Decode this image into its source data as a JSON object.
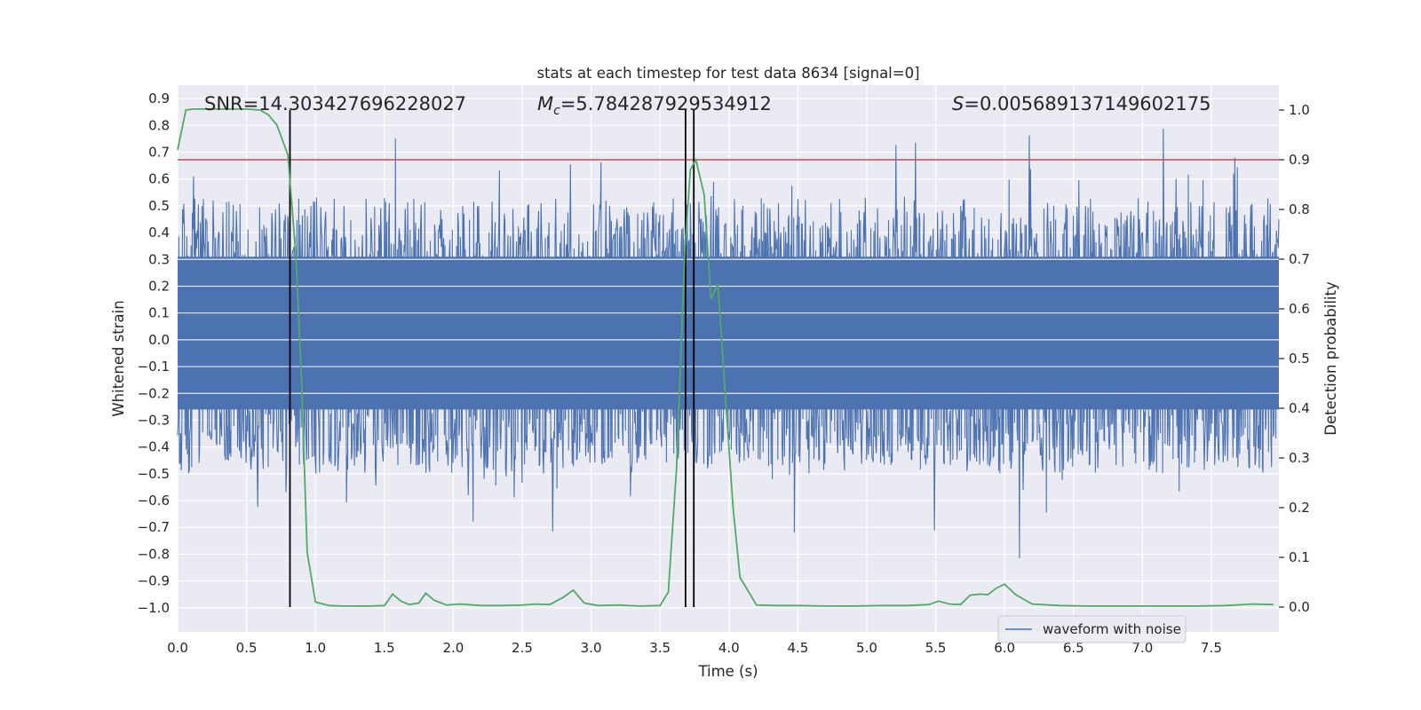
{
  "chart_data": {
    "type": "line",
    "title": "stats at each timestep for test data 8634 [signal=0]",
    "xlabel": "Time (s)",
    "ylabel": "Whitened strain",
    "y2label": "Detection probability",
    "xlim": [
      0.0,
      7.99
    ],
    "ylim": [
      -1.09,
      0.95
    ],
    "y2lim": [
      -0.05,
      1.05
    ],
    "xticks": [
      "0.0",
      "0.5",
      "1.0",
      "1.5",
      "2.0",
      "2.5",
      "3.0",
      "3.5",
      "4.0",
      "4.5",
      "5.0",
      "5.5",
      "6.0",
      "6.5",
      "7.0",
      "7.5"
    ],
    "xtick_values": [
      0.0,
      0.5,
      1.0,
      1.5,
      2.0,
      2.5,
      3.0,
      3.5,
      4.0,
      4.5,
      5.0,
      5.5,
      6.0,
      6.5,
      7.0,
      7.5
    ],
    "yticks": [
      "0.9",
      "0.8",
      "0.7",
      "0.6",
      "0.5",
      "0.4",
      "0.3",
      "0.2",
      "0.1",
      "0.0",
      "−0.1",
      "−0.2",
      "−0.3",
      "−0.4",
      "−0.5",
      "−0.6",
      "−0.7",
      "−0.8",
      "−0.9",
      "−1.0"
    ],
    "ytick_values": [
      0.9,
      0.8,
      0.7,
      0.6,
      0.5,
      0.4,
      0.3,
      0.2,
      0.1,
      0.0,
      -0.1,
      -0.2,
      -0.3,
      -0.4,
      -0.5,
      -0.6,
      -0.7,
      -0.8,
      -0.9,
      -1.0
    ],
    "y2ticks": [
      "1.0",
      "0.9",
      "0.8",
      "0.7",
      "0.6",
      "0.5",
      "0.4",
      "0.3",
      "0.2",
      "0.1",
      "0.0"
    ],
    "y2tick_values": [
      1.0,
      0.9,
      0.8,
      0.7,
      0.6,
      0.5,
      0.4,
      0.3,
      0.2,
      0.1,
      0.0
    ],
    "grid": true,
    "legend": {
      "position": "bottom-right",
      "entries": [
        {
          "label": "waveform with noise",
          "color": "#4c72b0"
        }
      ]
    },
    "annotations": {
      "snr": "SNR=14.303427696228027",
      "mc_symbol": "M",
      "mc_sub": "c",
      "mc_value": "=5.784287929534912",
      "s_symbol": "S",
      "s_value": "=0.005689137149602175"
    },
    "series": [
      {
        "name": "waveform with noise",
        "color": "#4c72b0",
        "axis": "left",
        "kind": "noise",
        "core_range": [
          -0.26,
          0.31
        ],
        "spike_max": 0.86,
        "spike_min": -1.0
      },
      {
        "axis": "right",
        "color": "#55a868",
        "x": [
          0.0,
          0.06,
          0.12,
          0.2,
          0.3,
          0.4,
          0.5,
          0.6,
          0.66,
          0.72,
          0.8,
          0.86,
          0.9,
          0.94,
          1.0,
          1.1,
          1.2,
          1.3,
          1.4,
          1.5,
          1.56,
          1.62,
          1.68,
          1.75,
          1.8,
          1.86,
          1.95,
          2.05,
          2.2,
          2.35,
          2.5,
          2.6,
          2.7,
          2.8,
          2.87,
          2.95,
          3.05,
          3.2,
          3.35,
          3.5,
          3.56,
          3.62,
          3.68,
          3.72,
          3.76,
          3.82,
          3.87,
          3.92,
          3.97,
          4.03,
          4.08,
          4.2,
          4.35,
          4.5,
          4.7,
          4.9,
          5.1,
          5.3,
          5.45,
          5.52,
          5.6,
          5.68,
          5.75,
          5.82,
          5.88,
          5.94,
          6.0,
          6.08,
          6.2,
          6.4,
          6.6,
          6.8,
          7.0,
          7.2,
          7.4,
          7.6,
          7.8,
          7.95
        ],
        "values": [
          0.92,
          1.0,
          1.002,
          1.002,
          1.002,
          1.002,
          1.002,
          1.0,
          0.99,
          0.97,
          0.91,
          0.7,
          0.45,
          0.11,
          0.01,
          0.003,
          0.002,
          0.002,
          0.002,
          0.003,
          0.026,
          0.012,
          0.005,
          0.008,
          0.028,
          0.014,
          0.004,
          0.006,
          0.003,
          0.003,
          0.004,
          0.006,
          0.005,
          0.02,
          0.034,
          0.008,
          0.003,
          0.004,
          0.002,
          0.003,
          0.03,
          0.28,
          0.72,
          0.88,
          0.9,
          0.83,
          0.62,
          0.65,
          0.44,
          0.2,
          0.06,
          0.004,
          0.003,
          0.003,
          0.002,
          0.002,
          0.003,
          0.003,
          0.005,
          0.012,
          0.006,
          0.005,
          0.024,
          0.026,
          0.025,
          0.038,
          0.046,
          0.025,
          0.006,
          0.003,
          0.002,
          0.002,
          0.002,
          0.002,
          0.002,
          0.003,
          0.006,
          0.005
        ]
      },
      {
        "axis": "right",
        "kind": "threshold",
        "color": "#c44e52",
        "value": 0.9
      }
    ],
    "vlines": [
      {
        "x": 0.815,
        "color": "#000000"
      },
      {
        "x": 3.685,
        "color": "#000000"
      },
      {
        "x": 3.745,
        "color": "#000000"
      }
    ]
  }
}
